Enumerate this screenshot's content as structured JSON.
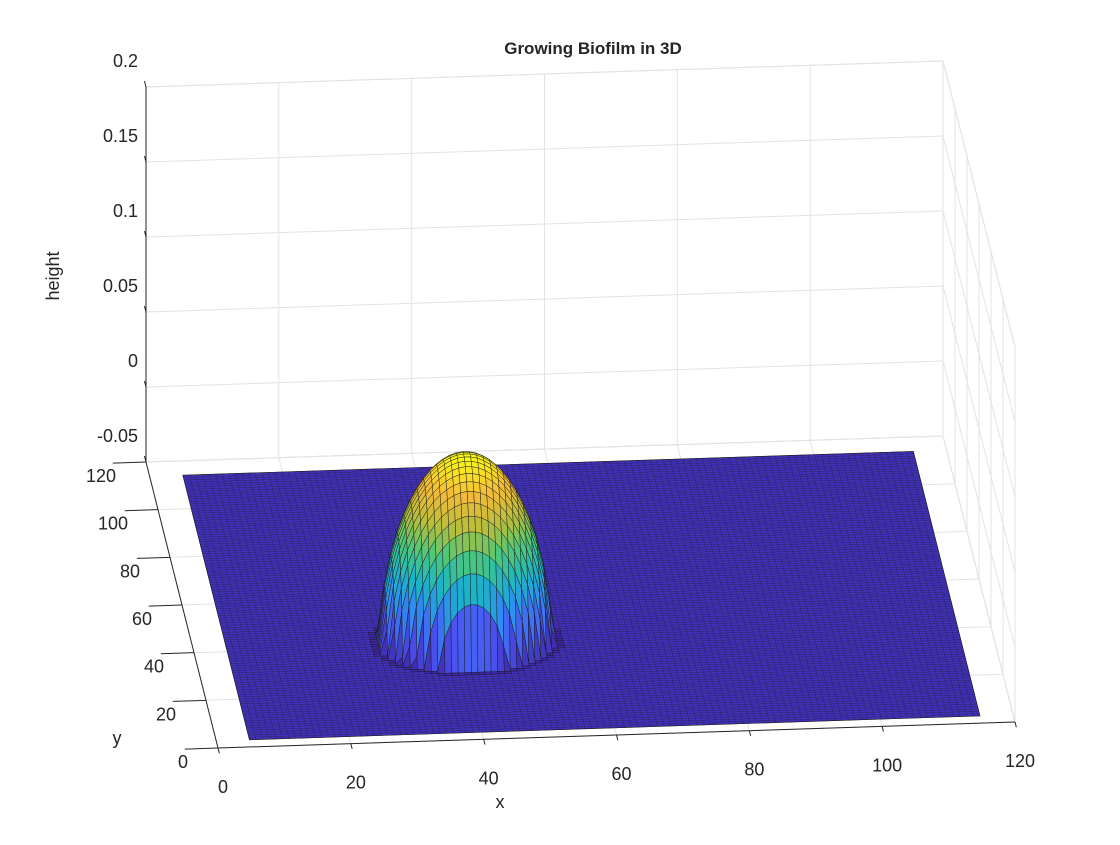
{
  "chart_data": {
    "type": "surface3d",
    "title": "Growing Biofilm in 3D",
    "xlabel": "x",
    "ylabel": "y",
    "zlabel": "height",
    "xlim": [
      0,
      120
    ],
    "ylim": [
      0,
      120
    ],
    "zlim": [
      -0.05,
      0.2
    ],
    "x_ticks": [
      "0",
      "20",
      "40",
      "60",
      "80",
      "100",
      "120"
    ],
    "y_ticks": [
      "0",
      "20",
      "40",
      "60",
      "80",
      "100",
      "120"
    ],
    "z_ticks": [
      "-0.05",
      "0",
      "0.05",
      "0.1",
      "0.15",
      "0.2"
    ],
    "grid": true,
    "colormap": "parula",
    "colormap_stops": [
      "#3e26a8",
      "#4b54f2",
      "#2e8ef1",
      "#1bb5c6",
      "#4cc77a",
      "#b8be3b",
      "#f5ba3a",
      "#f9fa14"
    ],
    "surface": {
      "domain_x": [
        5,
        115
      ],
      "domain_y": [
        3,
        114
      ],
      "base_height": -0.05,
      "peak": {
        "x": 41,
        "y": 41,
        "height": 0.075
      },
      "footprint_radius": 13,
      "profile": "dome",
      "grid_points": 112
    }
  }
}
